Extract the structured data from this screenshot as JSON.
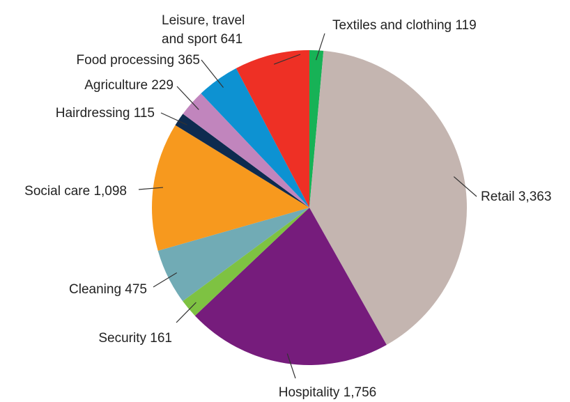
{
  "chart_data": {
    "type": "pie",
    "title": "",
    "start_angle_deg": 0,
    "direction": "clockwise",
    "slices": [
      {
        "label": "Textiles and clothing 119",
        "name": "Textiles and clothing",
        "value": 119,
        "color": "#17b256"
      },
      {
        "label": "Retail 3,363",
        "name": "Retail",
        "value": 3363,
        "color": "#c4b5b0"
      },
      {
        "label": "Hospitality 1,756",
        "name": "Hospitality",
        "value": 1756,
        "color": "#761c7c"
      },
      {
        "label": "Security 161",
        "name": "Security",
        "value": 161,
        "color": "#7ec242"
      },
      {
        "label": "Cleaning 475",
        "name": "Cleaning",
        "value": 475,
        "color": "#71abb5"
      },
      {
        "label": "Social care 1,098",
        "name": "Social care",
        "value": 1098,
        "color": "#f7991e"
      },
      {
        "label": "Hairdressing 115",
        "name": "Hairdressing",
        "value": 115,
        "color": "#0e2b4f"
      },
      {
        "label": "Agriculture 229",
        "name": "Agriculture",
        "value": 229,
        "color": "#c185bd"
      },
      {
        "label": "Food processing 365",
        "name": "Food processing",
        "value": 365,
        "color": "#0d92d2"
      },
      {
        "label": "Leisure, travel and sport 641",
        "name": "Leisure, travel and sport",
        "value": 641,
        "color": "#ee3025"
      }
    ]
  }
}
